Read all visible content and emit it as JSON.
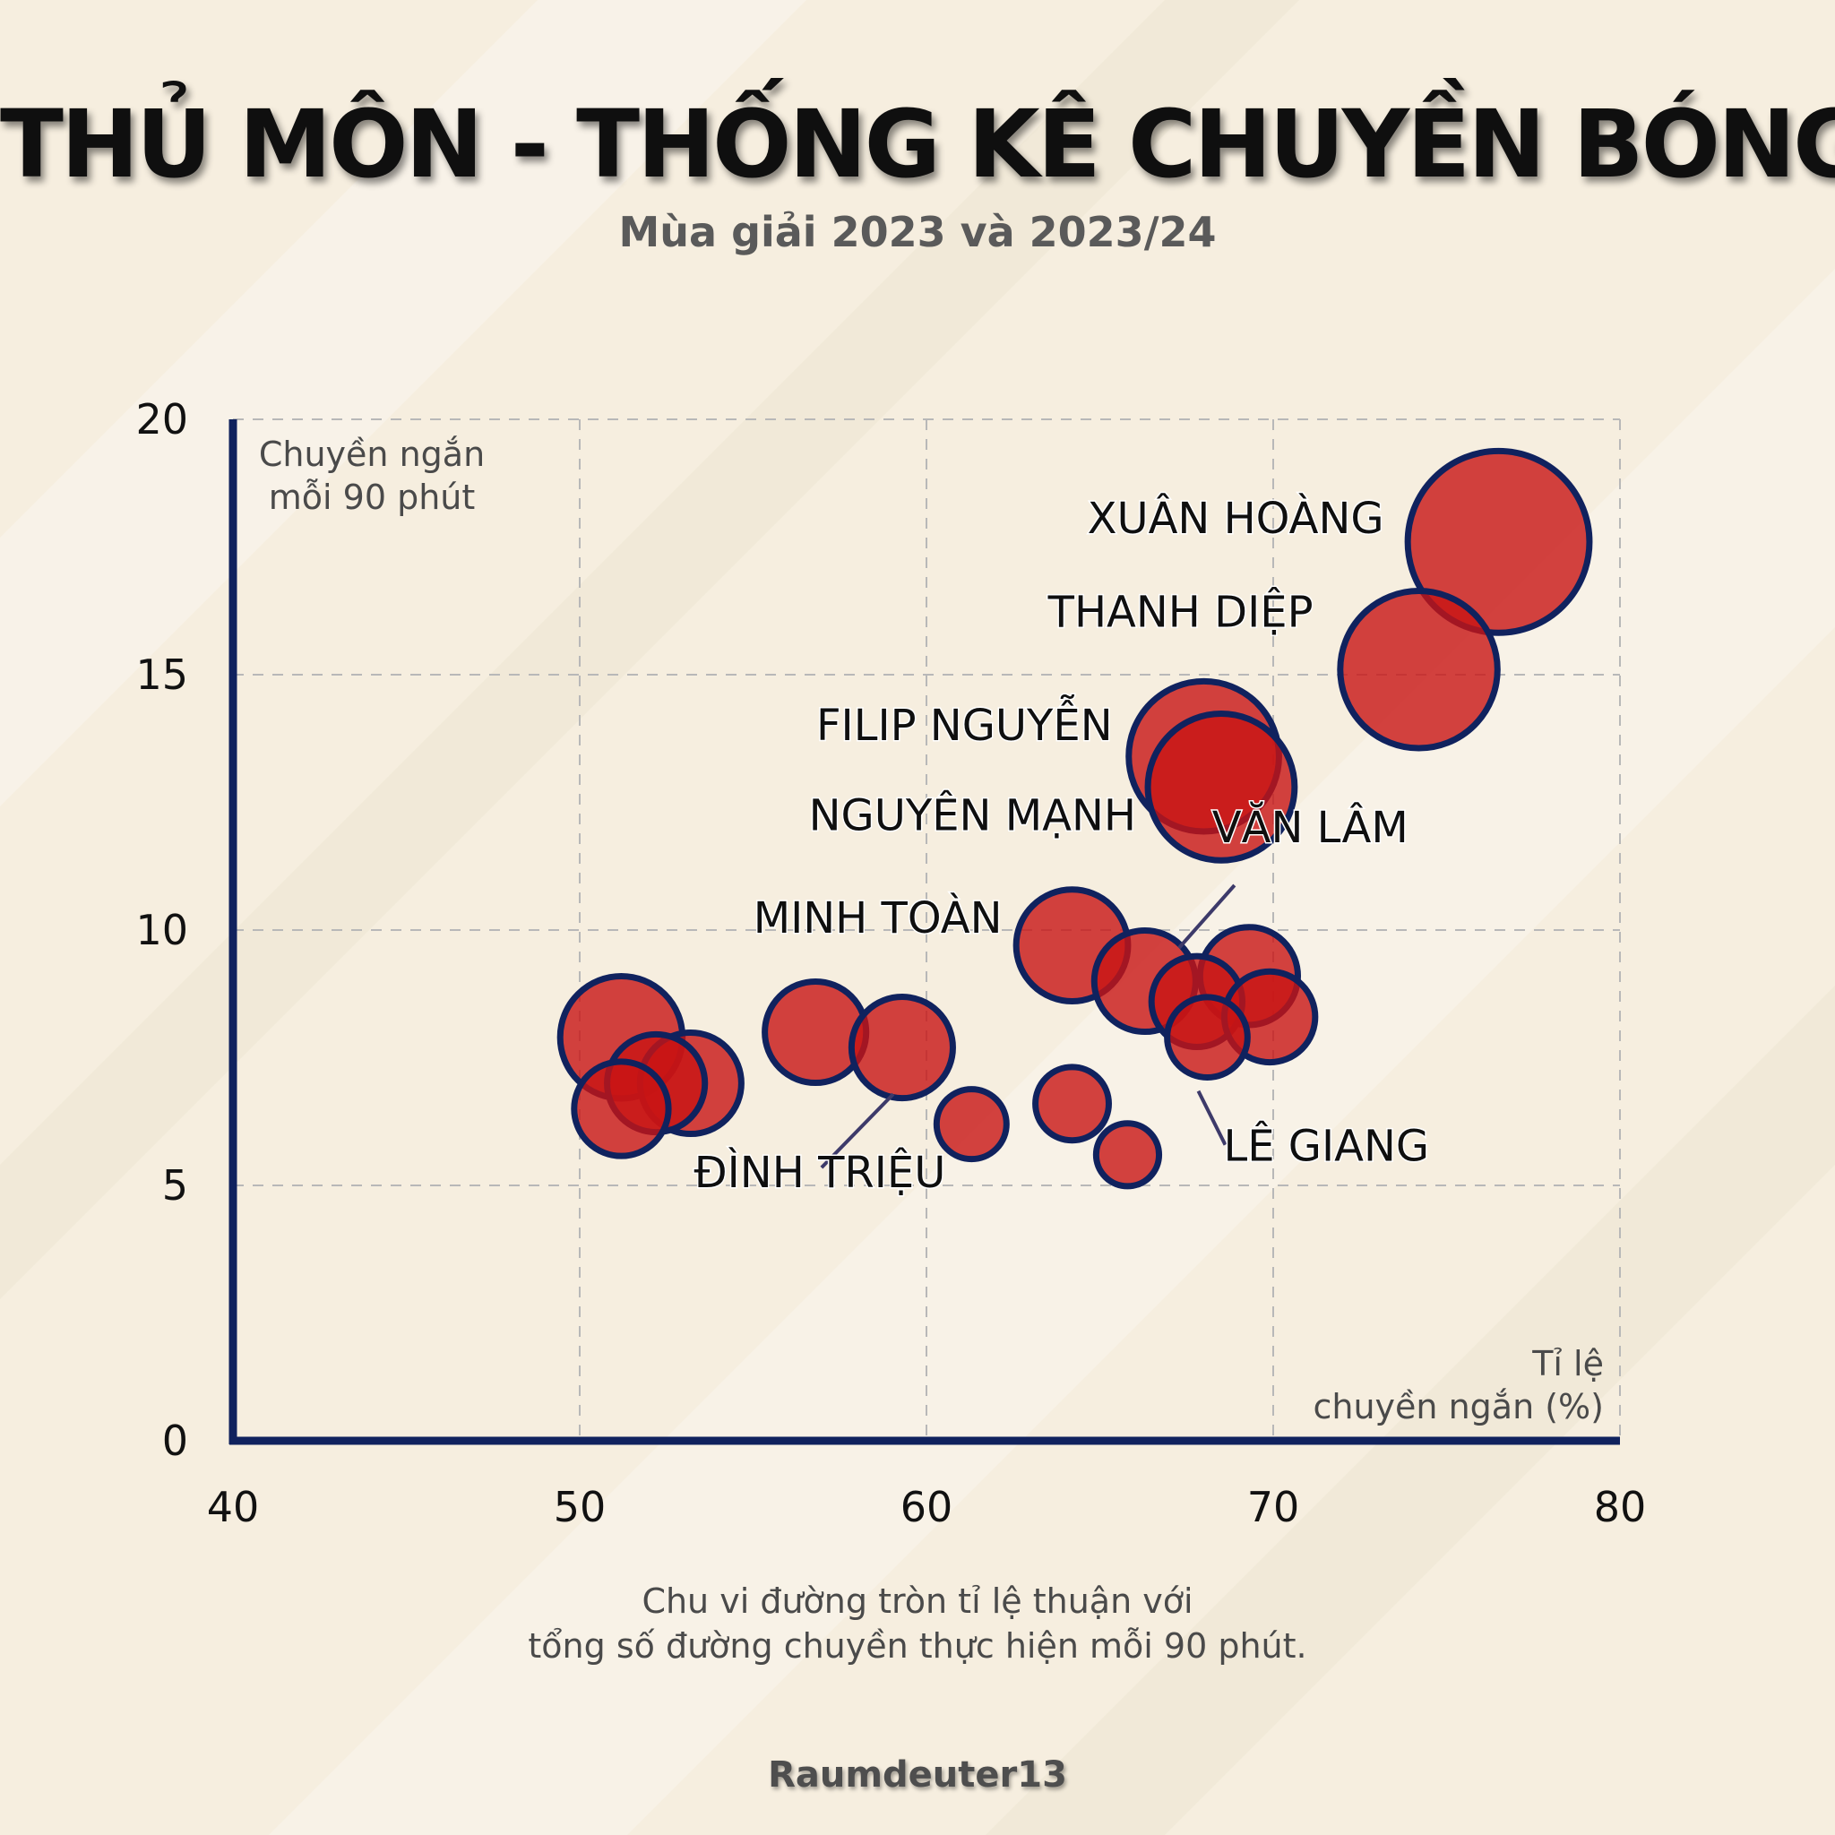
{
  "title": "THỦ MÔN - THỐNG KÊ CHUYỀN BÓNG",
  "subtitle": "Mùa giải 2023 và 2023/24",
  "footnote": {
    "line1": "Chu vi đường tròn tỉ lệ thuận với",
    "line2": "tổng số đường chuyền thực hiện mỗi 90 phút."
  },
  "credit": "Raumdeuter13",
  "colors": {
    "background": "#f6eedf",
    "bubble_fill": "#c81414",
    "bubble_stroke": "#10225e",
    "axis": "#10225e",
    "grid": "#b8b8b8",
    "label": "#0f0f0f"
  },
  "chart_data": {
    "type": "scatter",
    "variant": "bubble",
    "title": "THỦ MÔN - THỐNG KÊ CHUYỀN BÓNG",
    "subtitle": "Mùa giải 2023 và 2023/24",
    "xlabel": "Tỉ lệ\nchuyền ngắn (%)",
    "ylabel": "Chuyền ngắn\nmỗi 90 phút",
    "xlim": [
      40,
      80
    ],
    "ylim": [
      0,
      20
    ],
    "xticks": [
      40,
      50,
      60,
      70,
      80
    ],
    "yticks": [
      0,
      5,
      10,
      15,
      20
    ],
    "grid": true,
    "size_note": "Chu vi đường tròn tỉ lệ thuận với tổng số đường chuyền thực hiện mỗi 90 phút.",
    "points": [
      {
        "name": "XUÂN HOÀNG",
        "x": 76.5,
        "y": 17.6,
        "size": 2.6
      },
      {
        "name": "THANH DIỆP",
        "x": 74.2,
        "y": 15.1,
        "size": 2.25
      },
      {
        "name": "FILIP NGUYỄN",
        "x": 68.0,
        "y": 13.4,
        "size": 2.15
      },
      {
        "name": "NGUYÊN MẠNH",
        "x": 68.5,
        "y": 12.8,
        "size": 2.1
      },
      {
        "name": "MINH TOÀN",
        "x": 64.2,
        "y": 9.7,
        "size": 1.6
      },
      {
        "name": "VĂN LÂM",
        "x": 66.3,
        "y": 9.0,
        "size": 1.45
      },
      {
        "name": "",
        "x": 69.3,
        "y": 9.1,
        "size": 1.4
      },
      {
        "name": "",
        "x": 67.8,
        "y": 8.6,
        "size": 1.3
      },
      {
        "name": "",
        "x": 69.9,
        "y": 8.3,
        "size": 1.3
      },
      {
        "name": "LÊ GIANG",
        "x": 68.1,
        "y": 7.9,
        "size": 1.15
      },
      {
        "name": "",
        "x": 51.2,
        "y": 7.9,
        "size": 1.75
      },
      {
        "name": "",
        "x": 53.2,
        "y": 7.0,
        "size": 1.45
      },
      {
        "name": "",
        "x": 52.2,
        "y": 7.0,
        "size": 1.4
      },
      {
        "name": "",
        "x": 51.2,
        "y": 6.5,
        "size": 1.35
      },
      {
        "name": "",
        "x": 56.8,
        "y": 8.0,
        "size": 1.45
      },
      {
        "name": "ĐÌNH TRIỆU",
        "x": 59.3,
        "y": 7.7,
        "size": 1.45
      },
      {
        "name": "",
        "x": 61.3,
        "y": 6.2,
        "size": 1.0
      },
      {
        "name": "",
        "x": 64.2,
        "y": 6.6,
        "size": 1.05
      },
      {
        "name": "",
        "x": 65.8,
        "y": 5.6,
        "size": 0.9
      }
    ]
  }
}
